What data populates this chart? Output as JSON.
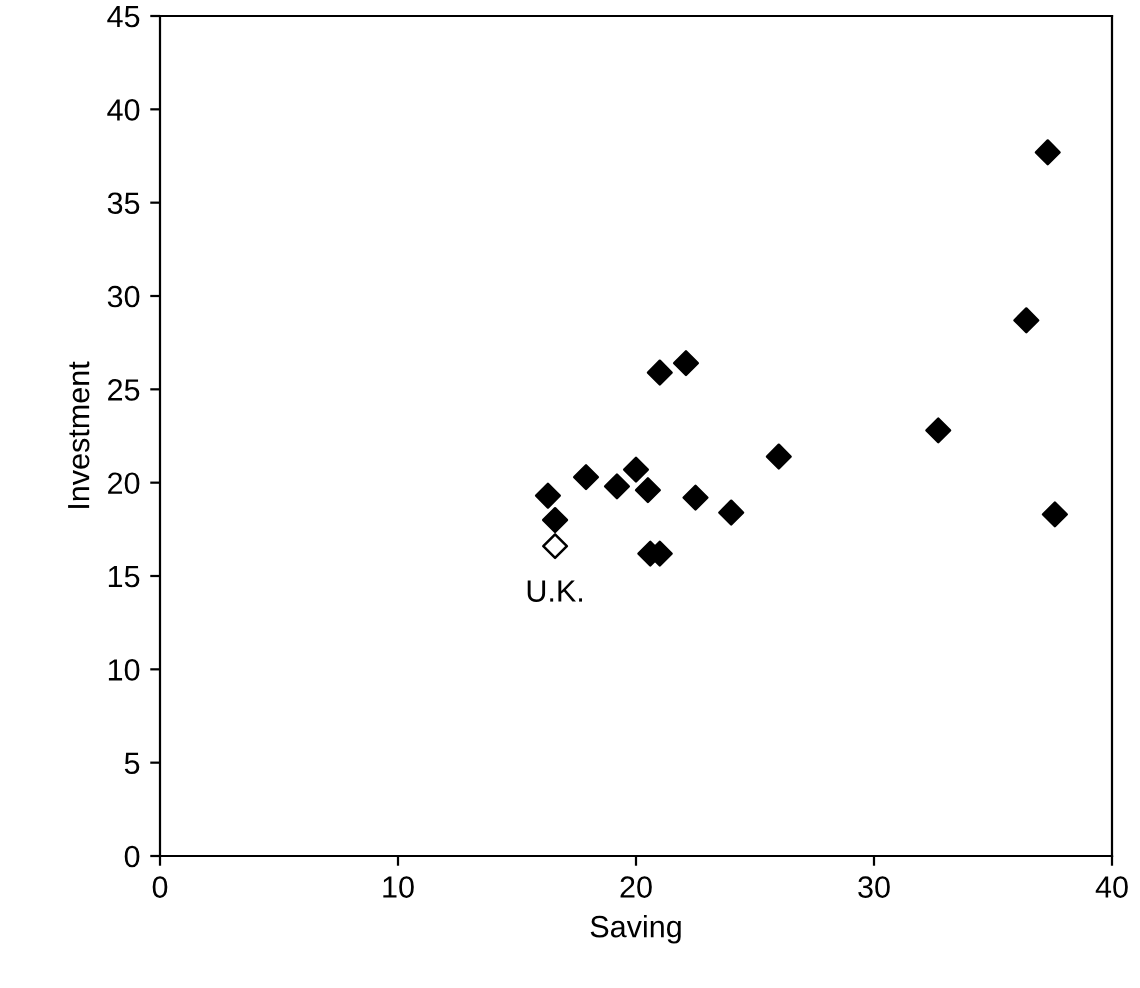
{
  "chart_data": {
    "type": "scatter",
    "xlabel": "Saving",
    "ylabel": "Investment",
    "xlim": [
      0,
      40
    ],
    "ylim": [
      0,
      45
    ],
    "xticks": [
      0,
      10,
      20,
      30,
      40
    ],
    "yticks": [
      0,
      5,
      10,
      15,
      20,
      25,
      30,
      35,
      40,
      45
    ],
    "marker": "diamond",
    "grid": false,
    "legend": false,
    "series": [
      {
        "color": "#000000",
        "x": [
          21.0,
          22.1,
          32.7,
          26.0,
          17.9,
          16.3,
          16.6,
          19.2,
          20.0,
          20.5,
          22.5,
          24.0,
          20.6,
          21.0,
          37.6,
          37.3,
          36.4
        ],
        "values": [
          25.9,
          26.4,
          22.8,
          21.4,
          20.3,
          19.3,
          18.0,
          19.8,
          20.7,
          19.6,
          19.2,
          18.4,
          16.2,
          16.2,
          18.3,
          37.7,
          28.7
        ]
      },
      {
        "color": "#ffffff",
        "x": [
          16.6
        ],
        "values": [
          16.6
        ]
      }
    ],
    "annotations": [
      {
        "text": "U.K.",
        "x": 16.6,
        "y": 16.6
      }
    ]
  }
}
